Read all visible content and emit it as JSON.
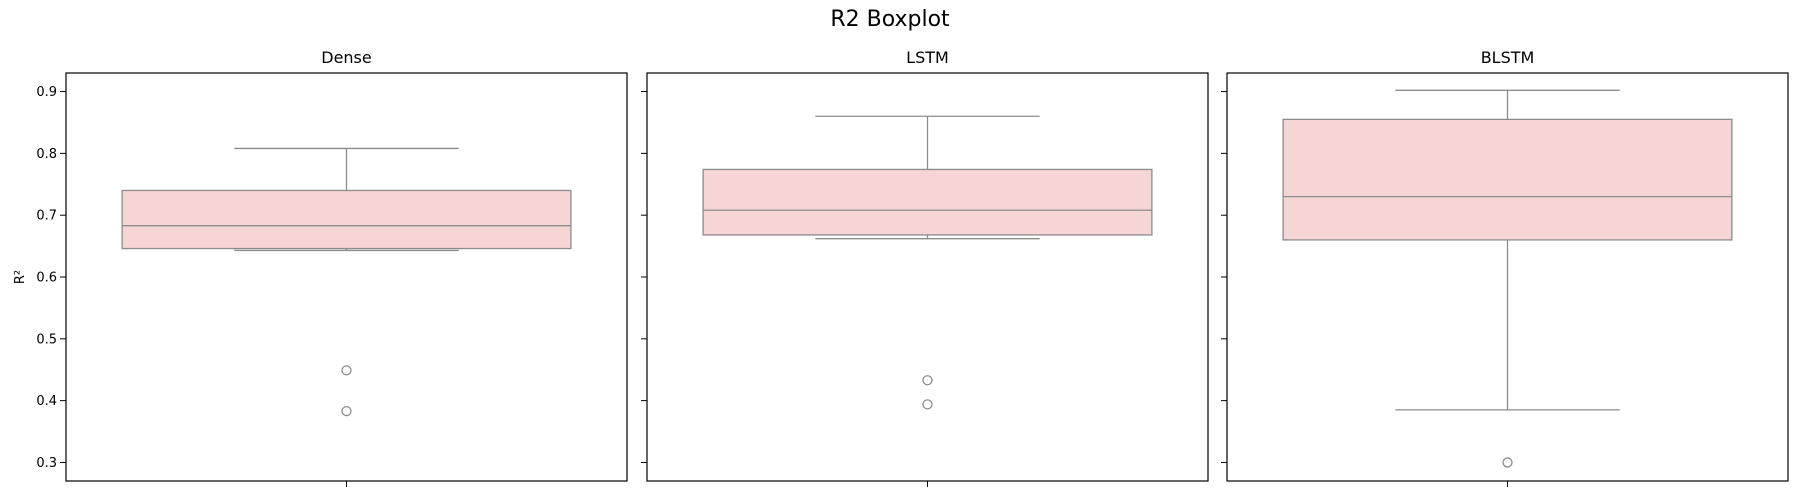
{
  "title": "R2 Boxplot",
  "chart_data": {
    "type": "boxplot",
    "title": "R2 Boxplot",
    "ylabel": "R²",
    "ylim": [
      0.27,
      0.93
    ],
    "yticks": [
      "0.3",
      "0.4",
      "0.5",
      "0.6",
      "0.7",
      "0.8",
      "0.9"
    ],
    "shared_y": true,
    "grid": false,
    "box_color": "#f6d5d5",
    "line_color": "#8c8c8c",
    "axes_color": "#000000",
    "panels": [
      {
        "title": "Dense",
        "q1": 0.646,
        "median": 0.683,
        "q3": 0.74,
        "whisker_low": 0.643,
        "whisker_high": 0.808,
        "outliers": [
          0.449,
          0.383
        ]
      },
      {
        "title": "LSTM",
        "q1": 0.668,
        "median": 0.708,
        "q3": 0.774,
        "whisker_low": 0.662,
        "whisker_high": 0.86,
        "outliers": [
          0.433,
          0.394
        ]
      },
      {
        "title": "BLSTM",
        "q1": 0.66,
        "median": 0.73,
        "q3": 0.855,
        "whisker_low": 0.385,
        "whisker_high": 0.902,
        "outliers": [
          0.3
        ]
      }
    ]
  }
}
